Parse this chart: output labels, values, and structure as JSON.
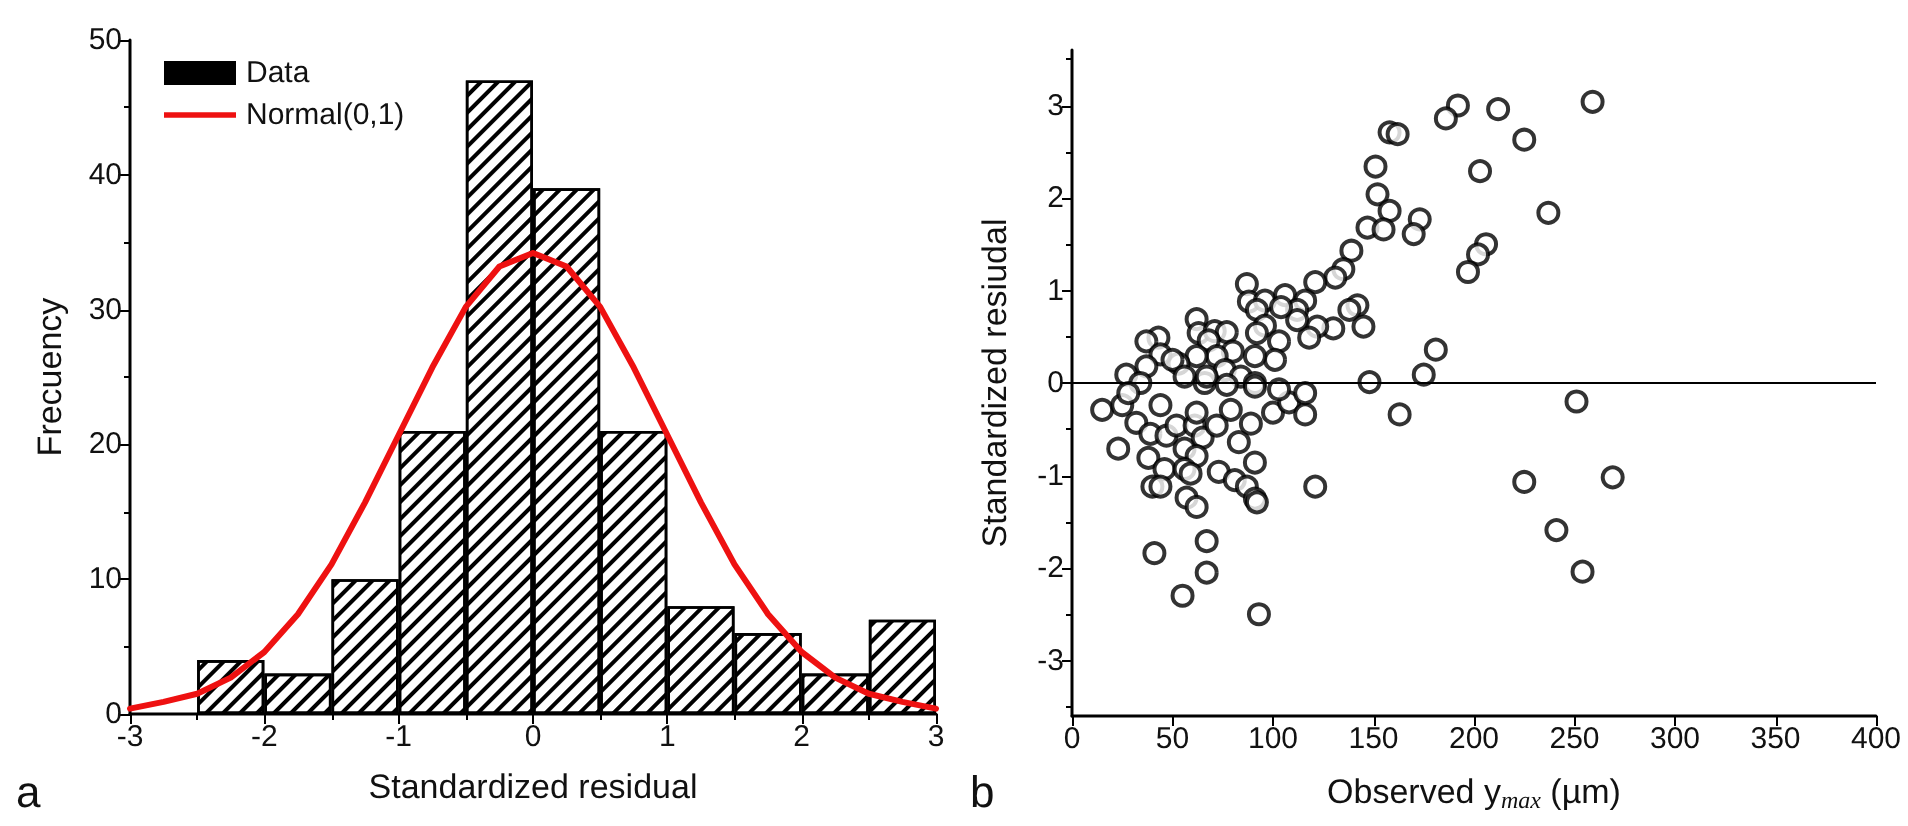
{
  "chart_data": [
    {
      "type": "histogram",
      "xlabel": "Standardized residual",
      "ylabel": "Frecuency",
      "annotations": [
        "a"
      ],
      "legend": "top left",
      "grid": false,
      "bins": [
        -2.5,
        -2,
        -1.5,
        -1,
        -0.5,
        0,
        0.5,
        1,
        1.5,
        2,
        2.5,
        3
      ],
      "series": [
        {
          "name": "Data",
          "type": "histogram",
          "color": "#000000",
          "values": [
            4,
            3,
            10,
            21,
            47,
            39,
            21,
            8,
            6,
            3,
            7
          ]
        },
        {
          "name": "Normal(0,1)",
          "type": "line",
          "color": "#ee1111",
          "x": [
            -3,
            -2.75,
            -2.5,
            -2.25,
            -2,
            -1.75,
            -1.5,
            -1.25,
            -1,
            -0.75,
            -0.5,
            -0.25,
            0,
            0.25,
            0.5,
            0.75,
            1,
            1.25,
            1.5,
            1.75,
            2,
            2.25,
            2.5,
            2.75,
            3
          ],
          "values": [
            0.4,
            0.9,
            1.5,
            2.7,
            4.6,
            7.4,
            11.1,
            15.7,
            20.7,
            25.7,
            30.2,
            33.2,
            34.2,
            33.2,
            30.2,
            25.7,
            20.7,
            15.7,
            11.1,
            7.4,
            4.6,
            2.7,
            1.5,
            0.9,
            0.4
          ]
        }
      ],
      "xlim": [
        -3,
        3
      ],
      "xticks": [
        -3,
        -2,
        -1,
        0,
        1,
        2,
        3
      ],
      "ylim": [
        0,
        50
      ],
      "yticks": [
        0,
        10,
        20,
        30,
        40,
        50
      ]
    },
    {
      "type": "scatter",
      "xlabel": "Observed y$_{max}$ (µm)",
      "ylabel": "Standardized resiudal",
      "annotations": [
        "b"
      ],
      "grid": false,
      "legend": false,
      "marker": "circle",
      "ref_lines": [
        {
          "axis": "y",
          "value": 0,
          "color": "#000000"
        }
      ],
      "series": [
        {
          "color": "#000000",
          "x": [
            259,
            192,
            186,
            212,
            225,
            158,
            162,
            151,
            203,
            152,
            158,
            147,
            155,
            237,
            173,
            170,
            206,
            202,
            197,
            139,
            135,
            131,
            121,
            142,
            138,
            145,
            130,
            122,
            118,
            87,
            88,
            96,
            92,
            106,
            116,
            112,
            112,
            104,
            96,
            92,
            103,
            101,
            91,
            62,
            63,
            71,
            77,
            68,
            80,
            72,
            62,
            53,
            43,
            37,
            44,
            50,
            37,
            27,
            56,
            66,
            181,
            175,
            148,
            76,
            84,
            91,
            67,
            34,
            15,
            25,
            28,
            32,
            39,
            44,
            47,
            52,
            56,
            61,
            62,
            65,
            62,
            72,
            79,
            83,
            89,
            91,
            23,
            38,
            46,
            56,
            59,
            73,
            81,
            87,
            91,
            92,
            40,
            44,
            57,
            62,
            121,
            67,
            41,
            67,
            55,
            93,
            100,
            108,
            116,
            116,
            103,
            91,
            77,
            163,
            251,
            225,
            269,
            241,
            254
          ],
          "values": [
            3.04,
            3.0,
            2.86,
            2.96,
            2.63,
            2.71,
            2.69,
            2.34,
            2.29,
            2.04,
            1.86,
            1.68,
            1.66,
            1.84,
            1.77,
            1.61,
            1.5,
            1.39,
            1.2,
            1.43,
            1.23,
            1.14,
            1.09,
            0.84,
            0.79,
            0.61,
            0.59,
            0.61,
            0.49,
            1.07,
            0.88,
            0.89,
            0.79,
            0.95,
            0.89,
            0.79,
            0.68,
            0.82,
            0.62,
            0.54,
            0.45,
            0.25,
            0.29,
            0.69,
            0.54,
            0.56,
            0.55,
            0.46,
            0.34,
            0.29,
            0.29,
            0.21,
            0.49,
            0.45,
            0.31,
            0.25,
            0.18,
            0.09,
            0.07,
            0.0,
            0.36,
            0.09,
            0.01,
            0.14,
            0.07,
            0.0,
            0.07,
            0.0,
            -0.29,
            -0.24,
            -0.11,
            -0.43,
            -0.55,
            -0.24,
            -0.57,
            -0.46,
            -0.71,
            -0.46,
            -0.32,
            -0.59,
            -0.79,
            -0.46,
            -0.29,
            -0.64,
            -0.44,
            -0.86,
            -0.71,
            -0.81,
            -0.93,
            -0.93,
            -0.98,
            -0.96,
            -1.05,
            -1.12,
            -1.25,
            -1.29,
            -1.12,
            -1.12,
            -1.24,
            -1.34,
            -1.12,
            -1.71,
            -1.84,
            -2.05,
            -2.3,
            -2.5,
            -0.32,
            -0.21,
            -0.34,
            -0.11,
            -0.07,
            -0.04,
            -0.02,
            -0.34,
            -0.2,
            -1.07,
            -1.02,
            -1.59,
            -2.04
          ]
        }
      ],
      "xlim": [
        0,
        400
      ],
      "xticks": [
        0,
        50,
        100,
        150,
        200,
        250,
        300,
        350,
        400
      ],
      "ylim": [
        -3.6,
        3.6
      ],
      "yticks": [
        -3,
        -2,
        -1,
        0,
        1,
        2,
        3
      ]
    }
  ]
}
